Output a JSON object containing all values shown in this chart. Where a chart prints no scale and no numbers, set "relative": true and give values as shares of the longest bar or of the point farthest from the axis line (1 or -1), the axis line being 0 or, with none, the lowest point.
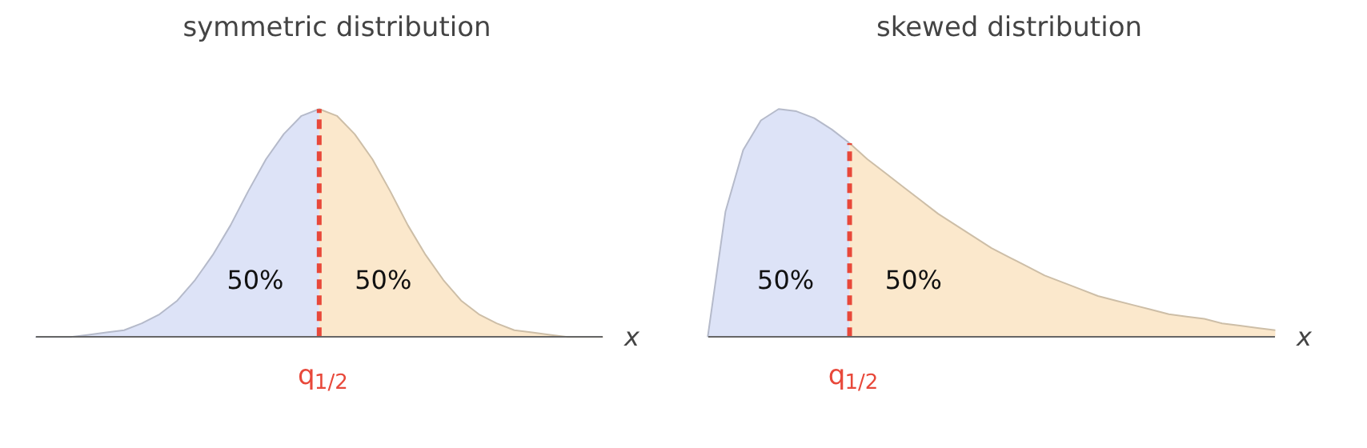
{
  "chart_data": [
    {
      "type": "area",
      "title": "symmetric distribution",
      "xlabel": "x",
      "relative": true,
      "grid": false,
      "categories": [
        null,
        null,
        null,
        null,
        null,
        null,
        null,
        null,
        null,
        null,
        null,
        null,
        null,
        null,
        null,
        null,
        null,
        null,
        null,
        null,
        null,
        null,
        null,
        null,
        null,
        null,
        null,
        null,
        null,
        null,
        null,
        null,
        null
      ],
      "series": [
        {
          "color": "#dde3f7",
          "values": [
            0,
            0,
            0,
            0.01,
            0.02,
            0.03,
            0.06,
            0.1,
            0.16,
            0.25,
            0.36,
            0.49,
            0.64,
            0.78,
            0.89,
            0.97,
            1,
            null,
            null,
            null,
            null,
            null,
            null,
            null,
            null,
            null,
            null,
            null,
            null,
            null,
            null,
            null,
            null
          ]
        },
        {
          "color": "#fbe8cc",
          "values": [
            null,
            null,
            null,
            null,
            null,
            null,
            null,
            null,
            null,
            null,
            null,
            null,
            null,
            null,
            null,
            null,
            1,
            0.97,
            0.89,
            0.78,
            0.64,
            0.49,
            0.36,
            0.25,
            0.16,
            0.1,
            0.06,
            0.03,
            0.02,
            0.01,
            0,
            0,
            0
          ]
        }
      ],
      "annotations": [
        "50%",
        "50%",
        "q$_{1/2}$"
      ]
    },
    {
      "type": "area",
      "title": "skewed distribution",
      "xlabel": "x",
      "relative": true,
      "grid": false,
      "categories": [
        null,
        null,
        null,
        null,
        null,
        null,
        null,
        null,
        null,
        null,
        null,
        null,
        null,
        null,
        null,
        null,
        null,
        null,
        null,
        null,
        null,
        null,
        null,
        null,
        null,
        null,
        null,
        null,
        null,
        null,
        null,
        null,
        null
      ],
      "series": [
        {
          "color": "#dde3f7",
          "values": [
            0,
            0.55,
            0.82,
            0.95,
            1,
            0.99,
            0.96,
            0.91,
            0.85,
            null,
            null,
            null,
            null,
            null,
            null,
            null,
            null,
            null,
            null,
            null,
            null,
            null,
            null,
            null,
            null,
            null,
            null,
            null,
            null,
            null,
            null,
            null,
            null
          ]
        },
        {
          "color": "#fbe8cc",
          "values": [
            null,
            null,
            null,
            null,
            null,
            null,
            null,
            null,
            0.85,
            0.78,
            0.72,
            0.66,
            0.6,
            0.54,
            0.49,
            0.44,
            0.39,
            0.35,
            0.31,
            0.27,
            0.24,
            0.21,
            0.18,
            0.16,
            0.14,
            0.12,
            0.1,
            0.09,
            0.08,
            0.06,
            0.05,
            0.04,
            0.03
          ]
        }
      ],
      "annotations": [
        "50%",
        "50%",
        "q$_{1/2}$"
      ]
    }
  ]
}
